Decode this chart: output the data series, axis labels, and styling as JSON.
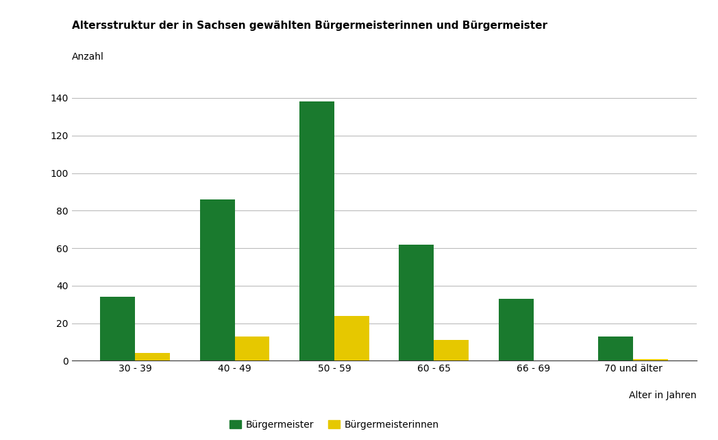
{
  "title": "Altersstruktur der in Sachsen gewählten Bürgermeisterinnen und Bürgermeister",
  "ylabel": "Anzahl",
  "xlabel_note": "Alter in Jahren",
  "categories": [
    "30 - 39",
    "40 - 49",
    "50 - 59",
    "60 - 65",
    "66 - 69",
    "70 und älter"
  ],
  "buergermeister": [
    34,
    86,
    138,
    62,
    33,
    13
  ],
  "buergermeisterinnen": [
    4,
    13,
    24,
    11,
    0,
    1
  ],
  "color_buergermeister": "#1a7a2e",
  "color_buergermeisterinnen": "#e6c800",
  "ylim": [
    0,
    150
  ],
  "yticks": [
    0,
    20,
    40,
    60,
    80,
    100,
    120,
    140
  ],
  "legend_label_1": "Bürgermeister",
  "legend_label_2": "Bürgermeisterinnen",
  "background_color": "#ffffff",
  "grid_color": "#bbbbbb",
  "title_fontsize": 11,
  "label_fontsize": 10,
  "tick_fontsize": 10
}
